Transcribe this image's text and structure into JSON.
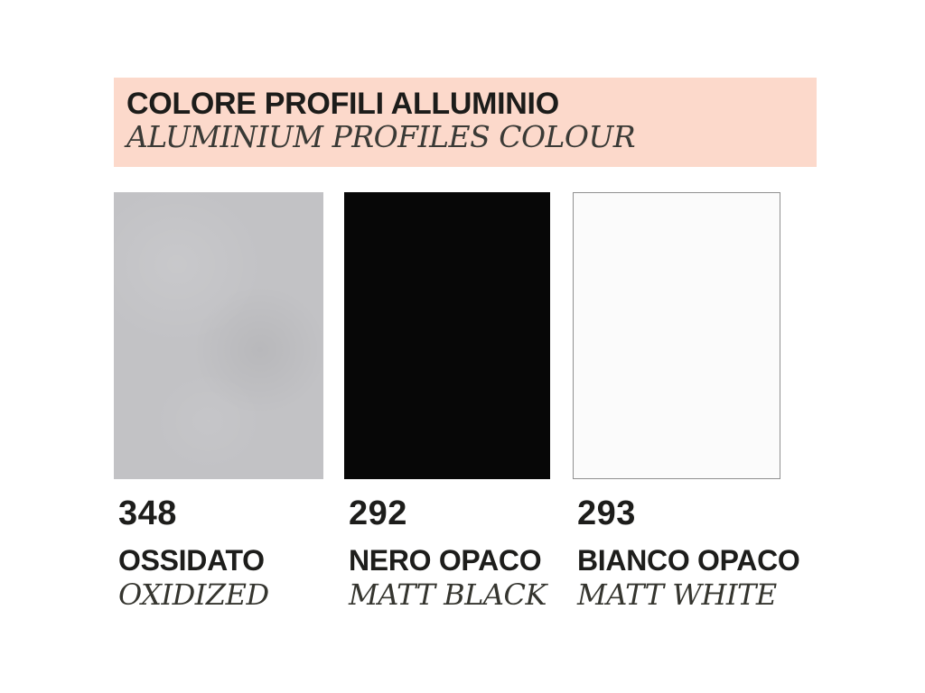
{
  "header": {
    "title": "COLORE PROFILI ALLUMINIO",
    "subtitle": "ALUMINIUM PROFILES COLOUR",
    "background": "#fcd9cb"
  },
  "swatches": [
    {
      "code": "348",
      "name_it": "OSSIDATO",
      "name_en": "OXIDIZED",
      "color": "#c2c2c5"
    },
    {
      "code": "292",
      "name_it": "NERO OPACO",
      "name_en": "MATT BLACK",
      "color": "#070707"
    },
    {
      "code": "293",
      "name_it": "BIANCO OPACO",
      "name_en": "MATT WHITE",
      "color": "#fbfbfb",
      "border": "#909090"
    }
  ]
}
